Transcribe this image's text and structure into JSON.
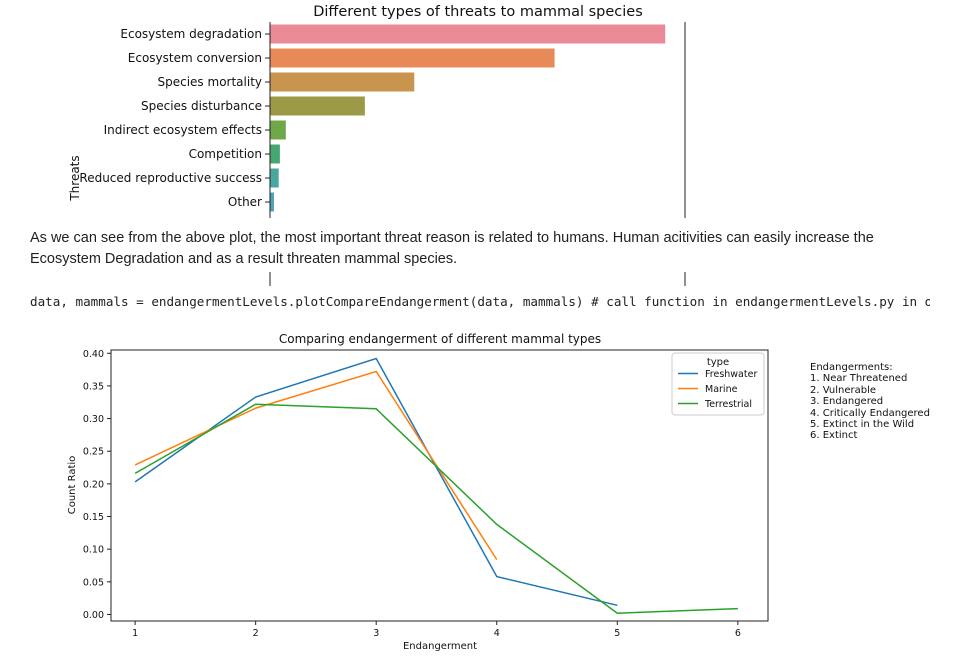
{
  "colors": {
    "bars": [
      "#e98a96",
      "#e88a58",
      "#c8944e",
      "#9c9a46",
      "#6fa848",
      "#45a871",
      "#48a8a0",
      "#4aa3b8"
    ],
    "freshwater": "#1f77b4",
    "marine": "#ff7f0e",
    "terrestrial": "#2ca02c"
  },
  "notebook": {
    "markdown": "As we can see from the above plot, the most important threat reason is related to humans. Human acitivities can easily increase the Ecosystem Degradation and as a result threaten mammal species.",
    "code": "data, mammals = endangermentLevels.plotCompareEndangerment(data, mammals) # call function in endangermentLevels.py in order to p"
  },
  "chart_data": [
    {
      "type": "bar",
      "orientation": "horizontal",
      "title": "Different types of threats to mammal species",
      "ylabel": "Threats",
      "xlabel": "",
      "categories": [
        "Ecosystem degradation",
        "Ecosystem conversion",
        "Species mortality",
        "Species disturbance",
        "Indirect ecosystem effects",
        "Competition",
        "Reduced reproductive success",
        "Other"
      ],
      "values": [
        1.0,
        0.72,
        0.365,
        0.24,
        0.04,
        0.025,
        0.022,
        0.01
      ],
      "xlim": [
        0,
        1.05
      ]
    },
    {
      "type": "line",
      "title": "Comparing endangerment of different mammal types",
      "xlabel": "Endangerment",
      "ylabel": "Count Ratio",
      "x_ticks": [
        "1",
        "2",
        "3",
        "4",
        "5",
        "6"
      ],
      "y_ticks": [
        "0.00",
        "0.05",
        "0.10",
        "0.15",
        "0.20",
        "0.25",
        "0.30",
        "0.35",
        "0.40"
      ],
      "xlim": [
        0.8,
        6.25
      ],
      "ylim": [
        -0.01,
        0.405
      ],
      "legend": {
        "title": "type",
        "placement": "upper right"
      },
      "series": [
        {
          "name": "Freshwater",
          "x": [
            1,
            2,
            3,
            4,
            5
          ],
          "values": [
            0.203,
            0.333,
            0.392,
            0.058,
            0.014
          ]
        },
        {
          "name": "Marine",
          "x": [
            1,
            2,
            3,
            4
          ],
          "values": [
            0.229,
            0.316,
            0.372,
            0.084
          ]
        },
        {
          "name": "Terrestrial",
          "x": [
            1,
            2,
            3,
            4,
            5,
            6
          ],
          "values": [
            0.216,
            0.322,
            0.315,
            0.138,
            0.002,
            0.009
          ]
        }
      ],
      "side_legend": {
        "title": "Endangerments:",
        "items": [
          "1. Near Threatened",
          "2. Vulnerable",
          "3. Endangered",
          "4. Critically Endangered",
          "5. Extinct in the Wild",
          "6. Extinct"
        ]
      }
    }
  ]
}
